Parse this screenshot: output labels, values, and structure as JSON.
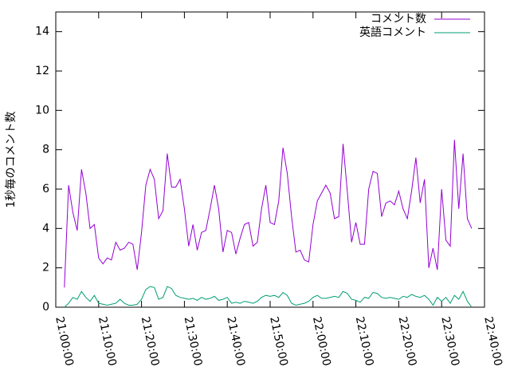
{
  "chart_data": {
    "type": "line",
    "ylabel": "1秒毎のコメント数",
    "x": [
      "21:02:00",
      "21:03:00",
      "21:04:00",
      "21:05:00",
      "21:06:00",
      "21:07:00",
      "21:08:00",
      "21:09:00",
      "21:10:00",
      "21:11:00",
      "21:12:00",
      "21:13:00",
      "21:14:00",
      "21:15:00",
      "21:16:00",
      "21:17:00",
      "21:18:00",
      "21:19:00",
      "21:20:00",
      "21:21:00",
      "21:22:00",
      "21:23:00",
      "21:24:00",
      "21:25:00",
      "21:26:00",
      "21:27:00",
      "21:28:00",
      "21:29:00",
      "21:30:00",
      "21:31:00",
      "21:32:00",
      "21:33:00",
      "21:34:00",
      "21:35:00",
      "21:36:00",
      "21:37:00",
      "21:38:00",
      "21:39:00",
      "21:40:00",
      "21:41:00",
      "21:42:00",
      "21:43:00",
      "21:44:00",
      "21:45:00",
      "21:46:00",
      "21:47:00",
      "21:48:00",
      "21:49:00",
      "21:50:00",
      "21:51:00",
      "21:52:00",
      "21:53:00",
      "21:54:00",
      "21:55:00",
      "21:56:00",
      "21:57:00",
      "21:58:00",
      "21:59:00",
      "22:00:00",
      "22:01:00",
      "22:02:00",
      "22:03:00",
      "22:04:00",
      "22:05:00",
      "22:06:00",
      "22:07:00",
      "22:08:00",
      "22:09:00",
      "22:10:00",
      "22:11:00",
      "22:12:00",
      "22:13:00",
      "22:14:00",
      "22:15:00",
      "22:16:00",
      "22:17:00",
      "22:18:00",
      "22:19:00",
      "22:20:00",
      "22:21:00",
      "22:22:00",
      "22:23:00",
      "22:24:00",
      "22:25:00",
      "22:26:00",
      "22:27:00",
      "22:28:00",
      "22:29:00",
      "22:30:00",
      "22:31:00",
      "22:32:00",
      "22:33:00",
      "22:34:00",
      "22:35:00",
      "22:36:00",
      "22:37:00"
    ],
    "series": [
      {
        "name": "コメント数",
        "color": "#9400d3",
        "values": [
          1.0,
          6.2,
          4.8,
          3.9,
          7.0,
          5.8,
          4.0,
          4.2,
          2.5,
          2.2,
          2.5,
          2.4,
          3.3,
          2.9,
          3.0,
          3.3,
          3.2,
          1.9,
          3.8,
          6.2,
          7.0,
          6.5,
          4.5,
          4.9,
          7.8,
          6.1,
          6.1,
          6.5,
          5.0,
          3.1,
          4.2,
          2.9,
          3.8,
          3.9,
          5.0,
          6.2,
          5.0,
          2.8,
          3.9,
          3.8,
          2.7,
          3.5,
          4.2,
          4.3,
          3.1,
          3.3,
          5.0,
          6.2,
          4.3,
          4.2,
          5.4,
          8.1,
          6.8,
          4.6,
          2.8,
          2.9,
          2.4,
          2.3,
          4.2,
          5.4,
          5.8,
          6.2,
          5.8,
          4.5,
          4.6,
          8.3,
          5.9,
          3.3,
          4.3,
          3.2,
          3.2,
          6.0,
          6.9,
          6.8,
          4.6,
          5.3,
          5.4,
          5.2,
          5.9,
          5.0,
          4.5,
          5.9,
          7.6,
          5.3,
          6.5,
          2.0,
          3.0,
          1.9,
          6.0,
          3.4,
          3.1,
          8.5,
          5.0,
          7.8,
          4.5,
          4.0
        ]
      },
      {
        "name": "英語コメント",
        "color": "#009e73",
        "values": [
          0.0,
          0.2,
          0.5,
          0.4,
          0.8,
          0.5,
          0.3,
          0.6,
          0.2,
          0.15,
          0.1,
          0.15,
          0.2,
          0.4,
          0.2,
          0.1,
          0.1,
          0.15,
          0.4,
          0.9,
          1.05,
          1.0,
          0.4,
          0.5,
          1.05,
          0.95,
          0.6,
          0.5,
          0.45,
          0.4,
          0.45,
          0.35,
          0.5,
          0.4,
          0.45,
          0.55,
          0.35,
          0.4,
          0.5,
          0.2,
          0.25,
          0.2,
          0.3,
          0.25,
          0.2,
          0.3,
          0.5,
          0.6,
          0.55,
          0.6,
          0.5,
          0.75,
          0.6,
          0.2,
          0.1,
          0.15,
          0.2,
          0.3,
          0.5,
          0.6,
          0.45,
          0.45,
          0.5,
          0.55,
          0.5,
          0.8,
          0.7,
          0.4,
          0.35,
          0.25,
          0.5,
          0.45,
          0.75,
          0.7,
          0.5,
          0.45,
          0.5,
          0.45,
          0.4,
          0.55,
          0.5,
          0.65,
          0.55,
          0.5,
          0.6,
          0.4,
          0.1,
          0.5,
          0.3,
          0.5,
          0.2,
          0.6,
          0.4,
          0.8,
          0.3,
          0.0
        ]
      }
    ],
    "xlim": [
      "21:00:00",
      "22:40:00"
    ],
    "xticks": [
      "21:00:00",
      "21:10:00",
      "21:20:00",
      "21:30:00",
      "21:40:00",
      "21:50:00",
      "22:00:00",
      "22:10:00",
      "22:20:00",
      "22:30:00",
      "22:40:00"
    ],
    "ylim": [
      0,
      15
    ],
    "yticks": [
      0,
      2,
      4,
      6,
      8,
      10,
      12,
      14
    ],
    "legend": "top-right"
  }
}
